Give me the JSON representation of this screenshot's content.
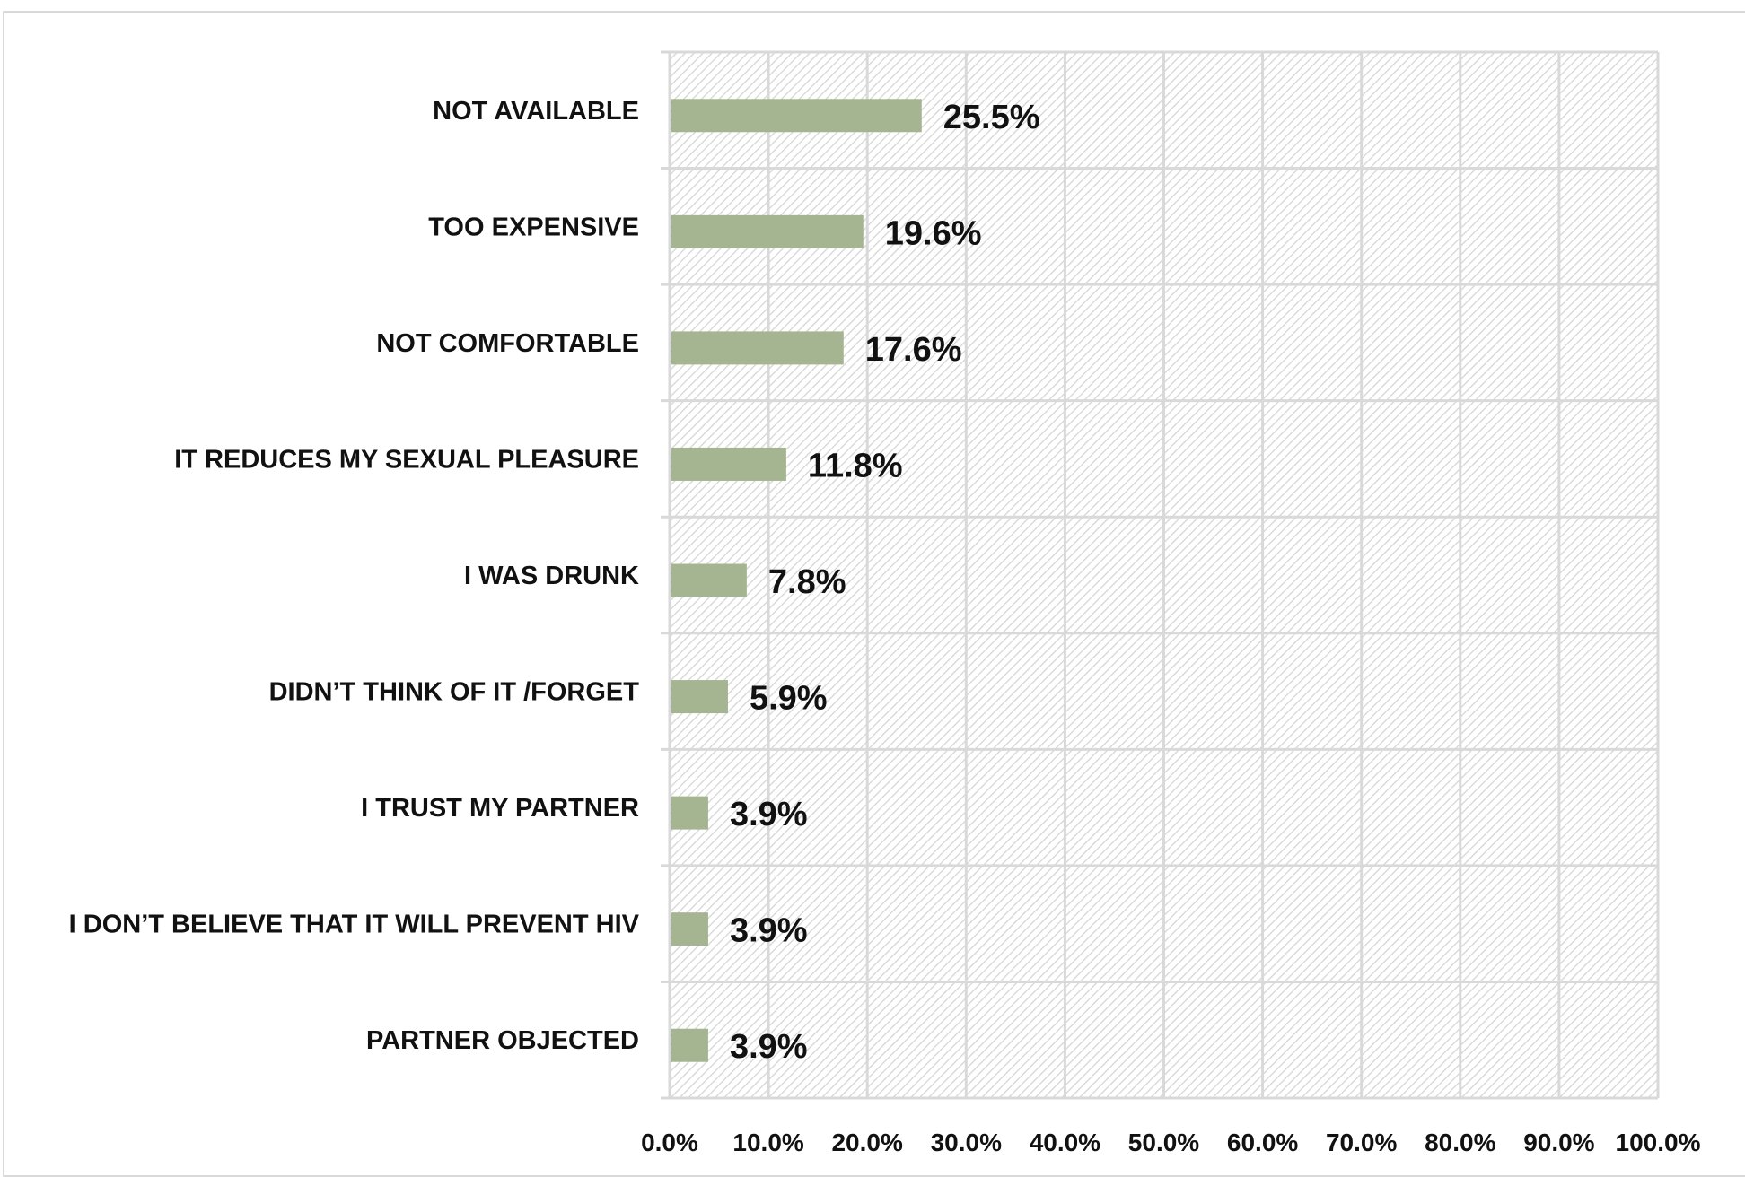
{
  "chart_data": {
    "type": "bar",
    "orientation": "horizontal",
    "title": "",
    "xlabel": "",
    "ylabel": "",
    "categories": [
      "NOT AVAILABLE",
      "TOO EXPENSIVE",
      "NOT COMFORTABLE",
      "IT REDUCES MY SEXUAL PLEASURE",
      "I WAS DRUNK",
      "DIDN’T THINK OF IT /FORGET",
      "I TRUST MY PARTNER",
      "I DON’T BELIEVE THAT IT WILL PREVENT HIV",
      "PARTNER OBJECTED"
    ],
    "values": [
      25.5,
      19.6,
      17.6,
      11.8,
      7.8,
      5.9,
      3.9,
      3.9,
      3.9
    ],
    "value_labels": [
      "25.5%",
      "19.6%",
      "17.6%",
      "11.8%",
      "7.8%",
      "5.9%",
      "3.9%",
      "3.9%",
      "3.9%"
    ],
    "xlim": [
      0,
      100
    ],
    "x_ticks": [
      0,
      10,
      20,
      30,
      40,
      50,
      60,
      70,
      80,
      90,
      100
    ],
    "x_tick_labels": [
      "0.0%",
      "10.0%",
      "20.0%",
      "30.0%",
      "40.0%",
      "50.0%",
      "60.0%",
      "70.0%",
      "80.0%",
      "90.0%",
      "100.0%"
    ],
    "grid": true,
    "legend": "none",
    "bar_color": "#a5b592",
    "grid_color": "#d9d9d9"
  }
}
